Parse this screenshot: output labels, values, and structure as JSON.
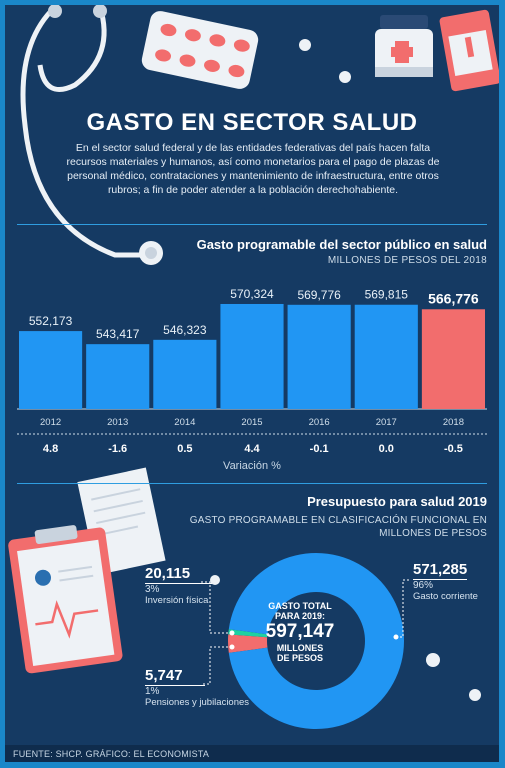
{
  "header": {
    "title": "GASTO EN SECTOR SALUD",
    "intro": "En el sector salud federal y de las entidades federativas del país hacen falta recursos materiales y humanos, así como monetarios para el pago de plazas de personal médico, contrataciones y mantenimiento de infraestructura, entre otros rubros; a fin de poder atender a la población derechohabiente."
  },
  "colors": {
    "background": "#153a63",
    "border": "#1a87c9",
    "bar": "#2196f3",
    "highlight": "#f26d6d"
  },
  "chart_data": [
    {
      "type": "bar",
      "title": "Gasto programable del sector público en salud",
      "subtitle": "MILLONES DE PESOS DEL 2018",
      "categories": [
        "2012",
        "2013",
        "2014",
        "2015",
        "2016",
        "2017",
        "2018"
      ],
      "values": [
        552173,
        543417,
        546323,
        570324,
        569776,
        569815,
        566776
      ],
      "value_labels": [
        "552,173",
        "543,417",
        "546,323",
        "570,324",
        "569,776",
        "569,815",
        "566,776"
      ],
      "highlight_index": 6,
      "variation": [
        "4.8",
        "-1.6",
        "0.5",
        "4.4",
        "-0.1",
        "0.0",
        "-0.5"
      ],
      "variation_label": "Variación %",
      "ylim": [
        500000,
        575000
      ]
    },
    {
      "type": "pie",
      "title": "Presupuesto para salud 2019",
      "subtitle": "GASTO PROGRAMABLE EN CLASIFICACIÓN FUNCIONAL EN MILLONES DE PESOS",
      "center": {
        "line1": "GASTO TOTAL",
        "line2": "PARA 2019:",
        "value": "597,147",
        "line3": "MILLONES",
        "line4": "DE PESOS"
      },
      "slices": [
        {
          "value": 571285,
          "value_label": "571,285",
          "percent": "96%",
          "label": "Gasto corriente",
          "color": "#2196f3"
        },
        {
          "value": 20115,
          "value_label": "20,115",
          "percent": "3%",
          "label": "Inversión física",
          "color": "#f26d6d"
        },
        {
          "value": 5747,
          "value_label": "5,747",
          "percent": "1%",
          "label": "Pensiones y jubilaciones",
          "color": "#1dd1a1"
        }
      ]
    }
  ],
  "footer": {
    "source": "FUENTE: SHCP. GRÁFICO: EL ECONOMISTA"
  }
}
